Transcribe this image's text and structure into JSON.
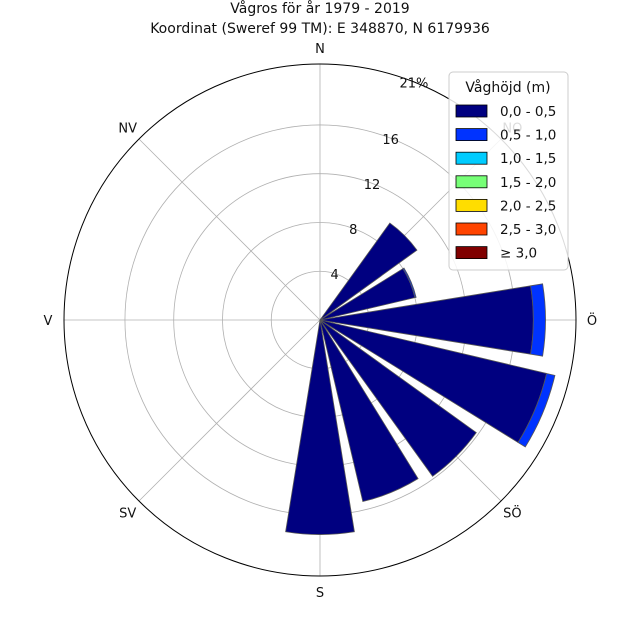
{
  "chart_data": {
    "type": "polar-bar",
    "title": "Vågros för år 1979 - 2019",
    "subtitle": "Koordinat (Sweref 99 TM): E 348870, N 6179936",
    "directions": [
      {
        "label": "N",
        "angle": 0
      },
      {
        "label": "NV",
        "angle": 315
      },
      {
        "label": "V",
        "angle": 270
      },
      {
        "label": "SV",
        "angle": 225
      },
      {
        "label": "S",
        "angle": 180
      },
      {
        "label": "SÖ",
        "angle": 135
      },
      {
        "label": "Ö",
        "angle": 90
      },
      {
        "label": "NO",
        "angle": 45
      }
    ],
    "rings": [
      {
        "value": 4,
        "label": "4"
      },
      {
        "value": 8,
        "label": "8"
      },
      {
        "value": 12,
        "label": "12"
      },
      {
        "value": 16,
        "label": "16"
      },
      {
        "value": 21,
        "label": "21%"
      }
    ],
    "rmax": 21,
    "legend": {
      "title": "Våghöjd (m)",
      "placement": "top-right",
      "entries": [
        {
          "label": "0,0 - 0,5",
          "color": "#000080"
        },
        {
          "label": "0,5 - 1,0",
          "color": "#0033ff"
        },
        {
          "label": "1,0 - 1,5",
          "color": "#00ccff"
        },
        {
          "label": "1,5 - 2,0",
          "color": "#77ff77"
        },
        {
          "label": "2,0 - 2,5",
          "color": "#ffdd00"
        },
        {
          "label": "2,5 - 3,0",
          "color": "#ff4400"
        },
        {
          "label": "≥ 3,0",
          "color": "#800000"
        }
      ]
    },
    "sectors": [
      {
        "direction": 45,
        "segments": [
          9.8
        ]
      },
      {
        "direction": 67.5,
        "segments": [
          8.0,
          0.1
        ]
      },
      {
        "direction": 90,
        "segments": [
          17.5,
          1.0
        ]
      },
      {
        "direction": 112.5,
        "segments": [
          19.1,
          0.7
        ]
      },
      {
        "direction": 135,
        "segments": [
          15.8
        ]
      },
      {
        "direction": 157.5,
        "segments": [
          15.3
        ]
      },
      {
        "direction": 180,
        "segments": [
          17.6
        ]
      }
    ]
  }
}
